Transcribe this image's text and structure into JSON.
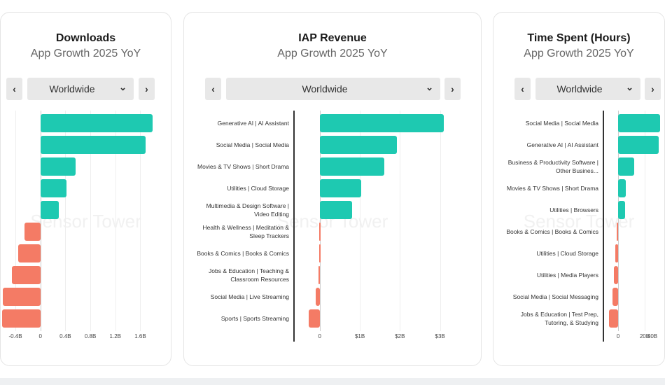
{
  "panels": [
    {
      "title": "Downloads",
      "subtitle": "App Growth 2025 YoY",
      "region": "Worldwide",
      "prev_icon": "chevron-left-icon",
      "next_icon": "chevron-right-icon",
      "dropdown_icon": "chevron-down-icon",
      "watermark": "Sensor Tower"
    },
    {
      "title": "IAP Revenue",
      "subtitle": "App Growth 2025 YoY",
      "region": "Worldwide",
      "prev_icon": "chevron-left-icon",
      "next_icon": "chevron-right-icon",
      "dropdown_icon": "chevron-down-icon",
      "watermark": "Sensor Tower"
    },
    {
      "title": "Time Spent (Hours)",
      "subtitle": "App Growth 2025 YoY",
      "region": "Worldwide",
      "prev_icon": "chevron-left-icon",
      "next_icon": "chevron-right-icon",
      "dropdown_icon": "chevron-down-icon",
      "watermark": "Sensor Tower"
    }
  ],
  "colors": {
    "positive": "#1ec9b1",
    "negative": "#f47b65"
  },
  "chart_data": [
    {
      "type": "bar",
      "orientation": "horizontal",
      "title": "Downloads",
      "subtitle": "App Growth 2025 YoY",
      "categories": [
        "",
        "",
        "",
        "",
        "",
        "",
        "",
        "",
        "",
        ""
      ],
      "values": [
        1.8,
        1.68,
        0.56,
        0.42,
        0.3,
        -0.26,
        -0.36,
        -0.46,
        -0.6,
        -0.75
      ],
      "xlim": [
        -0.86,
        1.83
      ],
      "ticks": [
        {
          "v": -0.4,
          "label": "-0.4B"
        },
        {
          "v": 0,
          "label": "0"
        },
        {
          "v": 0.4,
          "label": "0.4B"
        },
        {
          "v": 0.8,
          "label": "0.8B"
        },
        {
          "v": 1.2,
          "label": "1.2B"
        },
        {
          "v": 1.6,
          "label": "1.6B"
        }
      ],
      "grid": true
    },
    {
      "type": "bar",
      "orientation": "horizontal",
      "title": "IAP Revenue",
      "subtitle": "App Growth 2025 YoY",
      "categories": [
        "Generative AI | AI Assistant",
        "Social Media | Social Media",
        "Movies & TV Shows | Short Drama",
        "Utilities | Cloud Storage",
        "Multimedia & Design Software | Video Editing",
        "Health & Wellness | Meditation & Sleep Trackers",
        "Books & Comics | Books & Comics",
        "Jobs & Education | Teaching & Classroom Resources",
        "Social Media | Live Streaming",
        "Sports | Sports Streaming"
      ],
      "values": [
        3.1,
        1.93,
        1.61,
        1.03,
        0.81,
        -0.01,
        -0.02,
        -0.03,
        -0.1,
        -0.28
      ],
      "xlim": [
        -0.59,
        3.6
      ],
      "ticks": [
        {
          "v": 0,
          "label": "0"
        },
        {
          "v": 1,
          "label": "$1B"
        },
        {
          "v": 2,
          "label": "$2B"
        },
        {
          "v": 3,
          "label": "$3B"
        }
      ],
      "grid": true
    },
    {
      "type": "bar",
      "orientation": "horizontal",
      "title": "Time Spent (Hours)",
      "subtitle": "App Growth 2025 YoY",
      "categories": [
        "Social Media | Social Media",
        "Generative AI | AI Assistant",
        "Business & Productivity Software | Other Busines...",
        "Movies & TV Shows | Short Drama",
        "Utilities | Browsers",
        "Books & Comics | Books & Comics",
        "Utilities | Cloud Storage",
        "Utilities | Media Players",
        "Social Media | Social Messaging",
        "Jobs & Education | Test Prep, Tutoring, & Studying"
      ],
      "values": [
        50,
        30.5,
        12,
        6,
        5.5,
        -1,
        -2,
        -3,
        -4,
        -7
      ],
      "xlim": [
        -9.5,
        117
      ],
      "ticks": [
        {
          "v": 0,
          "label": "0"
        },
        {
          "v": 20,
          "label": "20B"
        },
        {
          "v": 40,
          "label": "40B"
        }
      ],
      "grid": true
    }
  ]
}
